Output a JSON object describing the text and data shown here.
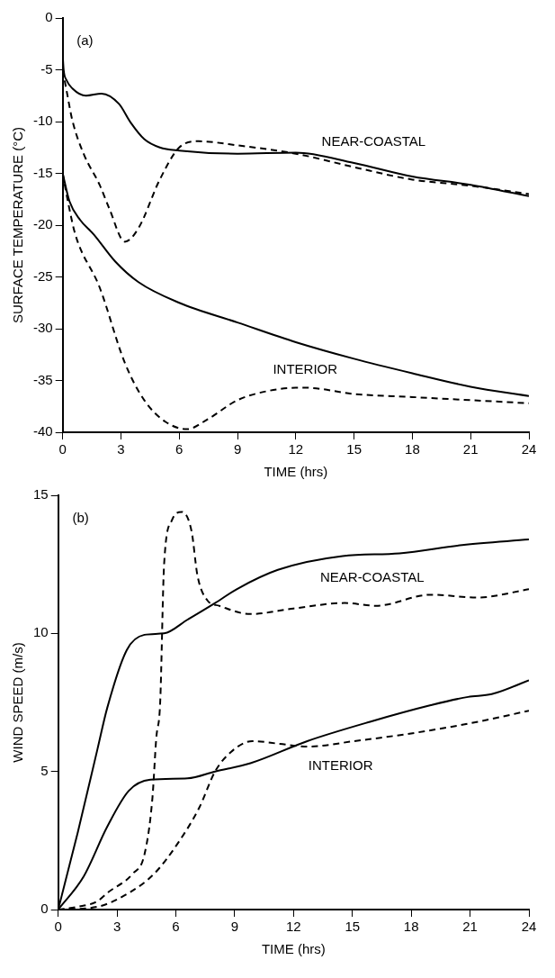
{
  "chart_data": [
    {
      "type": "line",
      "xlabel": "TIME (hrs)",
      "ylabel": "SURFACE TEMPERATURE (°C)",
      "xlim": [
        0,
        24
      ],
      "xticks": [
        0,
        3,
        6,
        9,
        12,
        15,
        18,
        21,
        24
      ],
      "ylim": [
        -40,
        0
      ],
      "yticks": [
        -40,
        -35,
        -30,
        -25,
        -20,
        -15,
        -10,
        -5,
        0
      ],
      "grid": false,
      "legend": false,
      "marker": "none",
      "annotations": [
        "(a)",
        "NEAR-COASTAL",
        "INTERIOR"
      ],
      "series": [
        {
          "color": "#000000",
          "line_style": "solid",
          "x": [
            0,
            0.05,
            0.2,
            0.5,
            1.2,
            2,
            2.9,
            3.5,
            4.2,
            5,
            6,
            9,
            12,
            15,
            18,
            21,
            24
          ],
          "values": [
            -3.5,
            -5,
            -6,
            -6.8,
            -7.5,
            -7.3,
            -8.3,
            -10.1,
            -11.7,
            -12.5,
            -12.8,
            -13.1,
            -13,
            -14,
            -15.3,
            -16.1,
            -17.2
          ]
        },
        {
          "color": "#000000",
          "line_style": "dashed",
          "x": [
            0,
            0.05,
            0.2,
            0.5,
            1.1,
            1.9,
            2.4,
            3.2,
            3.9,
            5,
            6,
            7,
            9,
            12,
            15,
            18,
            21,
            24
          ],
          "values": [
            -5,
            -5.5,
            -7,
            -9.9,
            -13.2,
            -16.1,
            -18.4,
            -21.6,
            -20.3,
            -15.6,
            -12.5,
            -11.9,
            -12.3,
            -13.1,
            -14.4,
            -15.6,
            -16.2,
            -17
          ]
        },
        {
          "color": "#000000",
          "line_style": "solid",
          "x": [
            0,
            0.35,
            0.9,
            1.6,
            2.7,
            3.9,
            6,
            9,
            12,
            15,
            18,
            21,
            24
          ],
          "values": [
            -15,
            -17.7,
            -19.5,
            -20.9,
            -23.5,
            -25.5,
            -27.5,
            -29.4,
            -31.3,
            -32.9,
            -34.3,
            -35.6,
            -36.5
          ]
        },
        {
          "color": "#000000",
          "line_style": "dashed",
          "x": [
            0,
            0.3,
            0.65,
            1.9,
            3.2,
            4.2,
            5.3,
            6.4,
            7.5,
            9,
            10.6,
            12,
            12.5,
            15,
            18,
            21,
            24
          ],
          "values": [
            -15,
            -18,
            -20.9,
            -26,
            -33.3,
            -36.9,
            -39,
            -39.7,
            -38.7,
            -36.9,
            -36,
            -35.7,
            -35.7,
            -36.3,
            -36.6,
            -36.9,
            -37.2
          ]
        }
      ]
    },
    {
      "type": "line",
      "xlabel": "TIME (hrs)",
      "ylabel": "WIND SPEED (m/s)",
      "xlim": [
        0,
        24
      ],
      "xticks": [
        0,
        3,
        6,
        9,
        12,
        15,
        18,
        21,
        24
      ],
      "ylim": [
        0,
        15
      ],
      "yticks": [
        0,
        5,
        10,
        15
      ],
      "grid": false,
      "legend": false,
      "marker": "none",
      "annotations": [
        "(b)",
        "NEAR-COASTAL",
        "INTERIOR"
      ],
      "series": [
        {
          "color": "#000000",
          "line_style": "solid",
          "x": [
            0,
            1,
            2,
            2.5,
            3.5,
            4.4,
            5.4,
            6.6,
            8,
            9.1,
            11.2,
            14.5,
            17.4,
            20.6,
            24
          ],
          "values": [
            0,
            2.8,
            5.8,
            7.3,
            9.4,
            9.95,
            10,
            10.5,
            11.1,
            11.6,
            12.3,
            12.8,
            12.9,
            13.2,
            13.4
          ]
        },
        {
          "color": "#000000",
          "line_style": "dashed",
          "x": [
            0,
            1,
            2,
            2.5,
            3.8,
            4.4,
            4.8,
            5,
            5.2,
            5.4,
            5.8,
            6.3,
            6.8,
            7.1,
            7.6,
            8.2,
            9.8,
            12,
            14.6,
            16.2,
            19,
            21.4,
            24
          ],
          "values": [
            0,
            0.1,
            0.3,
            0.6,
            1.3,
            2,
            4,
            6.2,
            7.5,
            12.5,
            14.1,
            14.4,
            13.7,
            12.1,
            11.2,
            11,
            10.7,
            10.9,
            11.1,
            11,
            11.4,
            11.3,
            11.6
          ]
        },
        {
          "color": "#000000",
          "line_style": "solid",
          "x": [
            0,
            1.3,
            2.5,
            3.6,
            4.7,
            6.6,
            8,
            9.8,
            12.7,
            15.9,
            19,
            20.9,
            22.1,
            24
          ],
          "values": [
            0,
            1.2,
            3,
            4.3,
            4.7,
            4.75,
            5,
            5.3,
            6.1,
            6.8,
            7.4,
            7.7,
            7.8,
            8.3
          ]
        },
        {
          "color": "#000000",
          "line_style": "dashed",
          "x": [
            0,
            2,
            3.6,
            4.9,
            6.1,
            7.2,
            8,
            8.8,
            9.9,
            11.3,
            12.7,
            15.1,
            18.2,
            21.4,
            24
          ],
          "values": [
            0,
            0.1,
            0.6,
            1.3,
            2.4,
            3.7,
            5,
            5.7,
            6.1,
            6,
            5.9,
            6.1,
            6.4,
            6.8,
            7.2
          ]
        }
      ]
    }
  ]
}
